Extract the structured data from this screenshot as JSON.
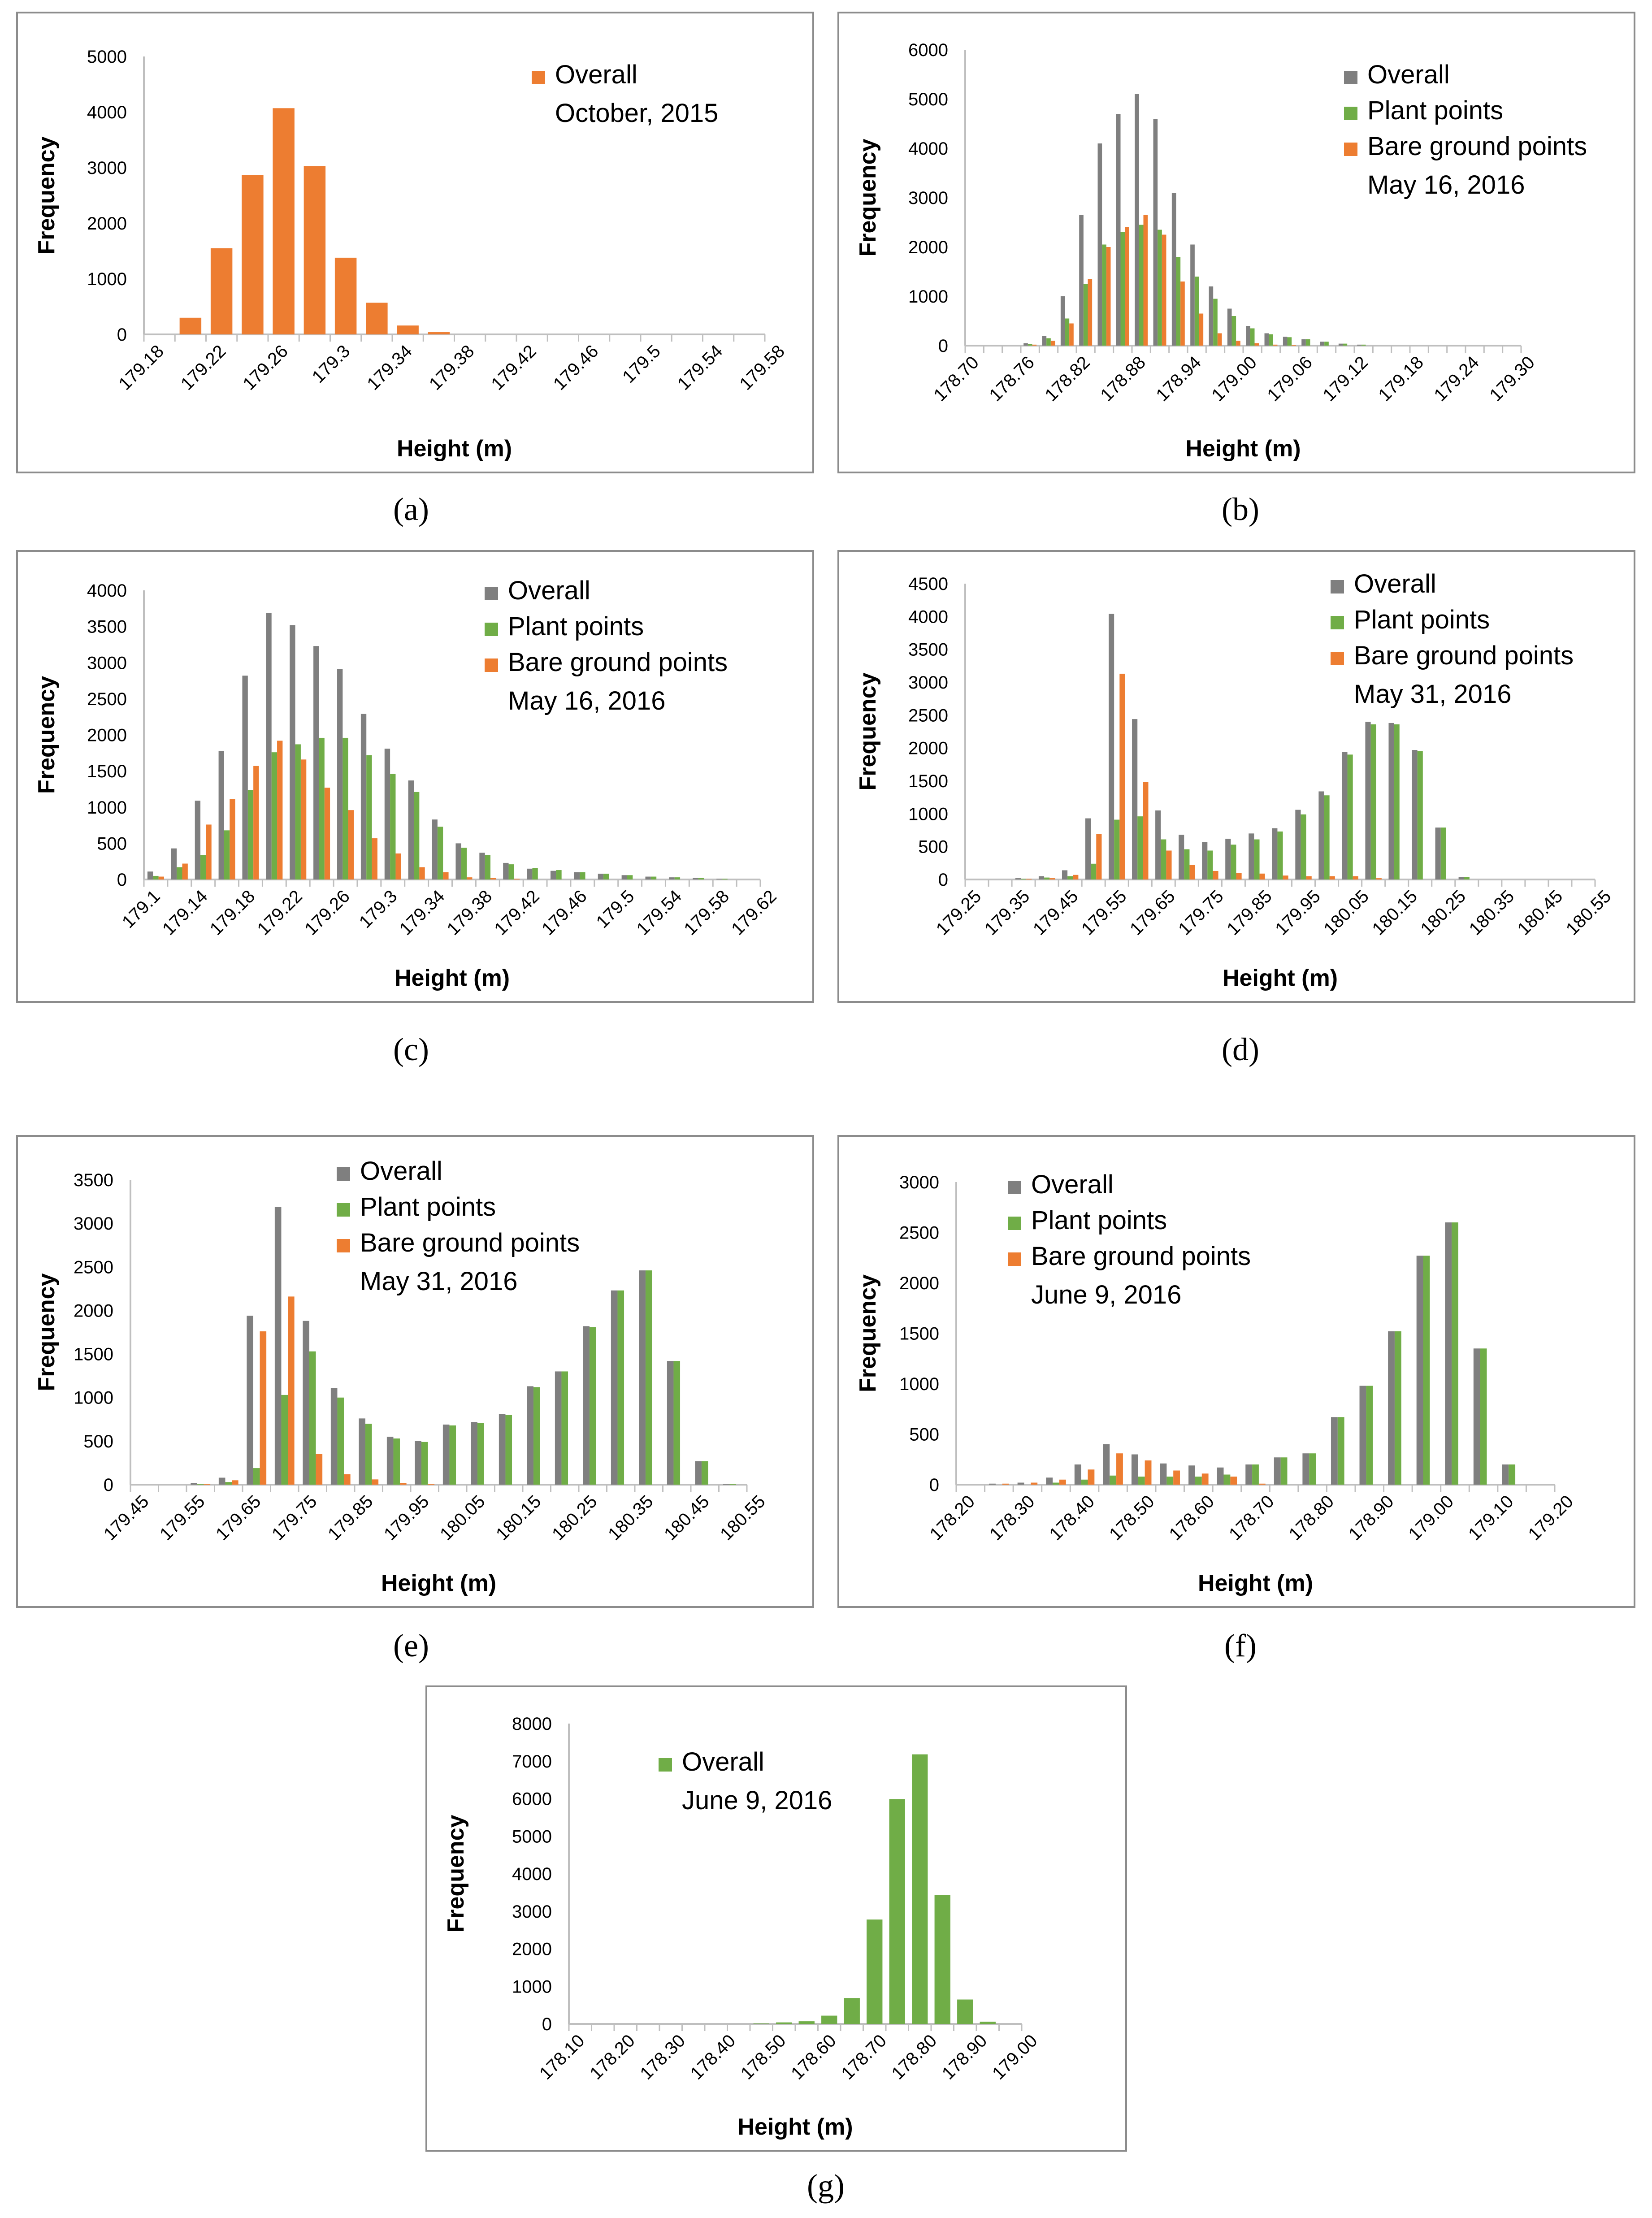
{
  "colors": {
    "Overall_gray": "#7f7f7f",
    "Plant": "#70ad47",
    "Bare": "#ed7d31"
  },
  "chart_data": [
    {
      "id": "a",
      "type": "bar",
      "caption": "(a)",
      "xlabel": "Height (m)",
      "ylabel": "Frequency",
      "ylim": [
        0,
        5000
      ],
      "yticks": [
        "0",
        "1000",
        "2000",
        "3000",
        "4000",
        "5000"
      ],
      "xticks": [
        "179.18",
        "179.22",
        "179.26",
        "179.3",
        "179.34",
        "179.38",
        "179.42",
        "179.46",
        "179.5",
        "179.54",
        "179.58"
      ],
      "nbins": 20,
      "legend": {
        "position": "top-right",
        "note": "October, 2015"
      },
      "series": [
        {
          "name": "Overall",
          "color": "#ed7d31",
          "values": [
            0,
            300,
            1550,
            2870,
            4070,
            3030,
            1380,
            570,
            160,
            40,
            0,
            0,
            0,
            0,
            0,
            0,
            0,
            0,
            0,
            0
          ]
        }
      ]
    },
    {
      "id": "b",
      "type": "bar",
      "caption": "(b)",
      "xlabel": "Height (m)",
      "ylabel": "Frequency",
      "ylim": [
        0,
        6000
      ],
      "yticks": [
        "0",
        "1000",
        "2000",
        "3000",
        "4000",
        "5000",
        "6000"
      ],
      "xticks": [
        "178.70",
        "178.76",
        "178.82",
        "178.88",
        "178.94",
        "179.00",
        "179.06",
        "179.12",
        "179.18",
        "179.24",
        "179.30"
      ],
      "nbins": 30,
      "legend": {
        "position": "top-right",
        "note": "May 16, 2016"
      },
      "series": [
        {
          "name": "Overall",
          "color": "#7f7f7f",
          "values": [
            0,
            0,
            0,
            50,
            200,
            1000,
            2650,
            4100,
            4700,
            5100,
            4600,
            3100,
            2050,
            1200,
            750,
            400,
            250,
            180,
            130,
            80,
            40,
            20,
            0,
            0,
            0,
            0,
            0,
            0,
            0,
            0
          ]
        },
        {
          "name": "Plant points",
          "color": "#70ad47",
          "values": [
            0,
            0,
            0,
            30,
            150,
            550,
            1250,
            2050,
            2300,
            2450,
            2350,
            1800,
            1400,
            950,
            600,
            350,
            230,
            170,
            130,
            80,
            40,
            20,
            0,
            0,
            0,
            0,
            0,
            0,
            0,
            0
          ]
        },
        {
          "name": "Bare ground points",
          "color": "#ed7d31",
          "values": [
            0,
            0,
            0,
            20,
            100,
            450,
            1350,
            2000,
            2400,
            2650,
            2250,
            1300,
            650,
            250,
            100,
            50,
            20,
            10,
            0,
            0,
            0,
            0,
            0,
            0,
            0,
            0,
            0,
            0,
            0,
            0
          ]
        }
      ]
    },
    {
      "id": "c",
      "type": "bar",
      "caption": "(c)",
      "xlabel": "Height (m)",
      "ylabel": "Frequency",
      "ylim": [
        0,
        4000
      ],
      "yticks": [
        "0",
        "500",
        "1000",
        "1500",
        "2000",
        "2500",
        "3000",
        "3500",
        "4000"
      ],
      "xticks": [
        "179.1",
        "179.14",
        "179.18",
        "179.22",
        "179.26",
        "179.3",
        "179.34",
        "179.38",
        "179.42",
        "179.46",
        "179.5",
        "179.54",
        "179.58",
        "179.62"
      ],
      "nbins": 26,
      "legend": {
        "position": "top-right",
        "note": "May 16, 2016"
      },
      "series": [
        {
          "name": "Overall",
          "color": "#7f7f7f",
          "values": [
            110,
            430,
            1090,
            1780,
            2820,
            3690,
            3520,
            3230,
            2910,
            2290,
            1810,
            1370,
            830,
            500,
            370,
            230,
            150,
            120,
            100,
            80,
            60,
            40,
            30,
            20,
            10,
            0
          ]
        },
        {
          "name": "Plant points",
          "color": "#70ad47",
          "values": [
            50,
            170,
            340,
            680,
            1240,
            1760,
            1870,
            1960,
            1960,
            1720,
            1460,
            1210,
            730,
            440,
            340,
            210,
            160,
            130,
            100,
            80,
            60,
            40,
            30,
            20,
            10,
            0
          ]
        },
        {
          "name": "Bare ground points",
          "color": "#ed7d31",
          "values": [
            40,
            220,
            760,
            1110,
            1570,
            1920,
            1660,
            1270,
            960,
            570,
            360,
            170,
            100,
            30,
            20,
            10,
            0,
            0,
            0,
            0,
            0,
            0,
            0,
            0,
            0,
            0
          ]
        }
      ]
    },
    {
      "id": "d",
      "type": "bar",
      "caption": "(d)",
      "xlabel": "Height (m)",
      "ylabel": "Frequency",
      "ylim": [
        0,
        4500
      ],
      "yticks": [
        "0",
        "500",
        "1000",
        "1500",
        "2000",
        "2500",
        "3000",
        "3500",
        "4000",
        "4500"
      ],
      "xticks": [
        "179.25",
        "179.35",
        "179.45",
        "179.55",
        "179.65",
        "179.75",
        "179.85",
        "179.95",
        "180.05",
        "180.15",
        "180.25",
        "180.35",
        "180.45",
        "180.55"
      ],
      "nbins": 27,
      "legend": {
        "position": "top-right",
        "note": "May 31, 2016"
      },
      "series": [
        {
          "name": "Overall",
          "color": "#7f7f7f",
          "values": [
            0,
            0,
            20,
            50,
            140,
            930,
            4040,
            2440,
            1050,
            680,
            570,
            620,
            700,
            780,
            1060,
            1340,
            1940,
            2400,
            2380,
            1970,
            790,
            40,
            0,
            0,
            0,
            0,
            0
          ]
        },
        {
          "name": "Plant points",
          "color": "#70ad47",
          "values": [
            0,
            0,
            10,
            30,
            50,
            240,
            910,
            960,
            610,
            460,
            440,
            530,
            610,
            730,
            990,
            1280,
            1900,
            2360,
            2360,
            1950,
            790,
            40,
            0,
            0,
            0,
            0,
            0
          ]
        },
        {
          "name": "Bare ground points",
          "color": "#ed7d31",
          "values": [
            0,
            0,
            10,
            20,
            70,
            690,
            3130,
            1480,
            440,
            220,
            130,
            100,
            90,
            60,
            50,
            50,
            50,
            20,
            0,
            0,
            0,
            0,
            0,
            0,
            0,
            0,
            0
          ]
        }
      ]
    },
    {
      "id": "e",
      "type": "bar",
      "caption": "(e)",
      "xlabel": "Height (m)",
      "ylabel": "Frequency",
      "ylim": [
        0,
        3500
      ],
      "yticks": [
        "0",
        "500",
        "1000",
        "1500",
        "2000",
        "2500",
        "3000",
        "3500"
      ],
      "xticks": [
        "179.45",
        "179.55",
        "179.65",
        "179.75",
        "179.85",
        "179.95",
        "180.05",
        "180.15",
        "180.25",
        "180.35",
        "180.45",
        "180.55"
      ],
      "nbins": 22,
      "legend": {
        "position": "top-center",
        "note": "May 31, 2016"
      },
      "series": [
        {
          "name": "Overall",
          "color": "#7f7f7f",
          "values": [
            0,
            0,
            20,
            80,
            1940,
            3190,
            1880,
            1110,
            760,
            550,
            500,
            690,
            720,
            810,
            1130,
            1300,
            1820,
            2230,
            2460,
            1420,
            270,
            10
          ]
        },
        {
          "name": "Plant points",
          "color": "#70ad47",
          "values": [
            0,
            0,
            10,
            30,
            190,
            1030,
            1530,
            1000,
            700,
            530,
            490,
            680,
            710,
            800,
            1120,
            1300,
            1810,
            2230,
            2460,
            1420,
            270,
            10
          ]
        },
        {
          "name": "Bare ground points",
          "color": "#ed7d31",
          "values": [
            0,
            0,
            10,
            50,
            1760,
            2160,
            350,
            120,
            60,
            20,
            10,
            0,
            0,
            0,
            0,
            0,
            0,
            0,
            0,
            0,
            0,
            0
          ]
        }
      ]
    },
    {
      "id": "f",
      "type": "bar",
      "caption": "(f)",
      "xlabel": "Height (m)",
      "ylabel": "Frequency",
      "ylim": [
        0,
        3000
      ],
      "yticks": [
        "0",
        "500",
        "1000",
        "1500",
        "2000",
        "2500",
        "3000"
      ],
      "xticks": [
        "178.20",
        "178.30",
        "178.40",
        "178.50",
        "178.60",
        "178.70",
        "178.80",
        "178.90",
        "179.00",
        "179.10",
        "179.20"
      ],
      "nbins": 21,
      "legend": {
        "position": "top-left",
        "note": "June 9, 2016"
      },
      "series": [
        {
          "name": "Overall",
          "color": "#7f7f7f",
          "values": [
            0,
            10,
            20,
            70,
            200,
            400,
            300,
            210,
            190,
            170,
            200,
            270,
            310,
            670,
            980,
            1520,
            2270,
            2600,
            1350,
            200,
            0
          ]
        },
        {
          "name": "Plant points",
          "color": "#70ad47",
          "values": [
            0,
            0,
            0,
            20,
            50,
            90,
            80,
            80,
            80,
            100,
            200,
            270,
            310,
            670,
            980,
            1520,
            2270,
            2600,
            1350,
            200,
            0
          ]
        },
        {
          "name": "Bare ground points",
          "color": "#ed7d31",
          "values": [
            0,
            10,
            20,
            50,
            150,
            310,
            240,
            140,
            110,
            80,
            10,
            0,
            0,
            0,
            0,
            0,
            0,
            0,
            0,
            0,
            0
          ]
        }
      ]
    },
    {
      "id": "g",
      "type": "bar",
      "caption": "(g)",
      "xlabel": "Height (m)",
      "ylabel": "Frequency",
      "ylim": [
        0,
        8000
      ],
      "yticks": [
        "0",
        "1000",
        "2000",
        "3000",
        "4000",
        "5000",
        "6000",
        "7000",
        "8000"
      ],
      "xticks": [
        "178.10",
        "178.20",
        "178.30",
        "178.40",
        "178.50",
        "178.60",
        "178.70",
        "178.80",
        "178.90",
        "179.00"
      ],
      "nbins": 20,
      "legend": {
        "position": "top-left",
        "note": "June 9, 2016"
      },
      "series": [
        {
          "name": "Overall",
          "color": "#70ad47",
          "values": [
            0,
            0,
            0,
            0,
            0,
            0,
            0,
            0,
            10,
            40,
            70,
            220,
            690,
            2780,
            5990,
            7180,
            3430,
            650,
            60,
            0
          ]
        }
      ]
    }
  ]
}
